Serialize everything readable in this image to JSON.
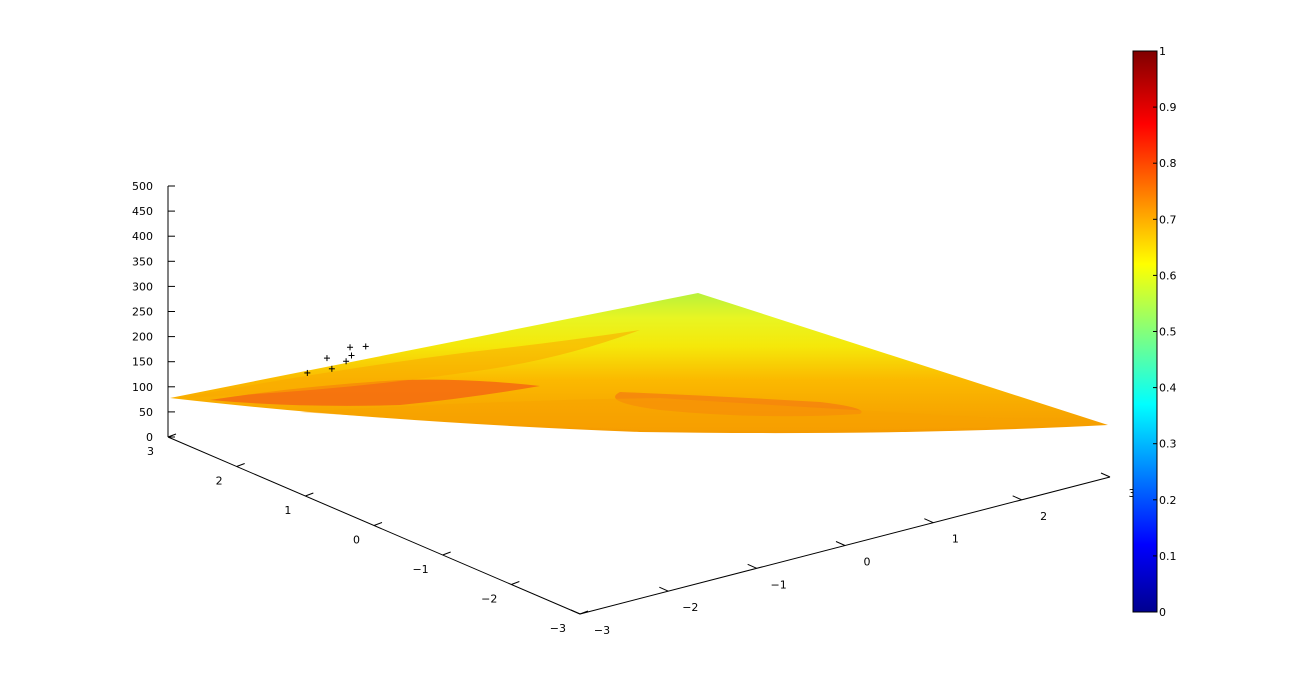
{
  "chart_data": {
    "type": "surface",
    "x_ticks": [
      "-3",
      "-2",
      "-1",
      "0",
      "1",
      "2",
      "3"
    ],
    "y_ticks": [
      "-3",
      "-2",
      "-1",
      "0",
      "1",
      "2",
      "3"
    ],
    "z_ticks": [
      "0",
      "50",
      "100",
      "150",
      "200",
      "250",
      "300",
      "350",
      "400",
      "450",
      "500"
    ],
    "xlim": [
      -3,
      3
    ],
    "ylim": [
      -3,
      3
    ],
    "zlim": [
      0,
      500
    ],
    "colorbar_ticks": [
      "0",
      "0.1",
      "0.2",
      "0.3",
      "0.4",
      "0.5",
      "0.6",
      "0.7",
      "0.8",
      "0.9",
      "1"
    ],
    "colorbar_range": [
      0,
      1
    ],
    "colormap": "jet",
    "grid": false,
    "colorbar_placement": "right",
    "surface_colors": {
      "peak": "#b8f23c",
      "mid": "#f5e80a",
      "low": "#ff8c00",
      "valley": "#f56a10"
    },
    "markers": [
      {
        "x": -2.2,
        "y": 2.0,
        "z": 150
      },
      {
        "x": -2.0,
        "y": 1.9,
        "z": 155
      },
      {
        "x": -1.9,
        "y": 2.1,
        "z": 160
      },
      {
        "x": -1.8,
        "y": 1.95,
        "z": 158
      },
      {
        "x": -1.7,
        "y": 2.0,
        "z": 162
      },
      {
        "x": -1.6,
        "y": 2.15,
        "z": 165
      },
      {
        "x": -1.5,
        "y": 2.05,
        "z": 168
      }
    ]
  }
}
